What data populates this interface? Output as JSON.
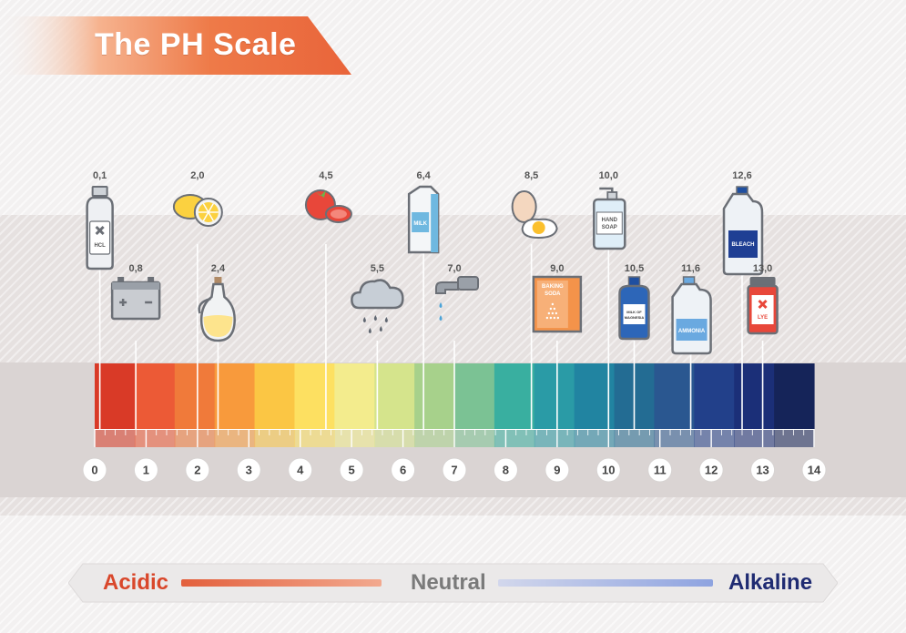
{
  "title": "The PH Scale",
  "scale": {
    "min": 0,
    "max": 14,
    "tick_labels": [
      "0",
      "1",
      "2",
      "3",
      "4",
      "5",
      "6",
      "7",
      "8",
      "9",
      "10",
      "11",
      "12",
      "13",
      "14"
    ],
    "segment_colors": [
      "#d93a27",
      "#ec5a36",
      "#f07a3a",
      "#f89a3c",
      "#fbc644",
      "#fde061",
      "#f3ec8d",
      "#d5e48c",
      "#a7d18b",
      "#7bc294",
      "#39afa0",
      "#2a9ba6",
      "#2184a1",
      "#236c93",
      "#2a5790",
      "#22408a",
      "#1b2f78",
      "#152459"
    ]
  },
  "items": [
    {
      "ph": 0.1,
      "label": "0,1",
      "icon": "hcl-bottle-icon",
      "icon_text": "HCL",
      "row": "upper"
    },
    {
      "ph": 0.8,
      "label": "0,8",
      "icon": "car-battery-icon",
      "row": "lower"
    },
    {
      "ph": 2.0,
      "label": "2,0",
      "icon": "lemon-icon",
      "row": "upper"
    },
    {
      "ph": 2.4,
      "label": "2,4",
      "icon": "vinegar-jar-icon",
      "row": "lower"
    },
    {
      "ph": 4.5,
      "label": "4,5",
      "icon": "tomato-icon",
      "row": "upper"
    },
    {
      "ph": 5.5,
      "label": "5,5",
      "icon": "rain-cloud-icon",
      "row": "lower"
    },
    {
      "ph": 6.4,
      "label": "6,4",
      "icon": "milk-carton-icon",
      "icon_text": "MILK",
      "row": "upper"
    },
    {
      "ph": 7.0,
      "label": "7,0",
      "icon": "water-tap-icon",
      "row": "lower"
    },
    {
      "ph": 8.5,
      "label": "8,5",
      "icon": "egg-icon",
      "row": "upper"
    },
    {
      "ph": 9.0,
      "label": "9,0",
      "icon": "baking-soda-box-icon",
      "icon_text": "BAKING SODA",
      "row": "lower"
    },
    {
      "ph": 10.0,
      "label": "10,0",
      "icon": "hand-soap-icon",
      "icon_text": "HAND SOAP",
      "row": "upper"
    },
    {
      "ph": 10.5,
      "label": "10,5",
      "icon": "milk-of-magnesia-icon",
      "icon_text": "MILK OF MAGNESIA",
      "row": "lower"
    },
    {
      "ph": 11.6,
      "label": "11,6",
      "icon": "ammonia-jug-icon",
      "icon_text": "AMMONIA",
      "row": "lower"
    },
    {
      "ph": 12.6,
      "label": "12,6",
      "icon": "bleach-jug-icon",
      "icon_text": "BLEACH",
      "row": "upper"
    },
    {
      "ph": 13.0,
      "label": "13,0",
      "icon": "lye-jar-icon",
      "icon_text": "LYE",
      "row": "lower"
    }
  ],
  "legend": {
    "acidic": "Acidic",
    "neutral": "Neutral",
    "alkaline": "Alkaline",
    "acidic_color": "#d9472b",
    "alkaline_color": "#1f2b72"
  }
}
